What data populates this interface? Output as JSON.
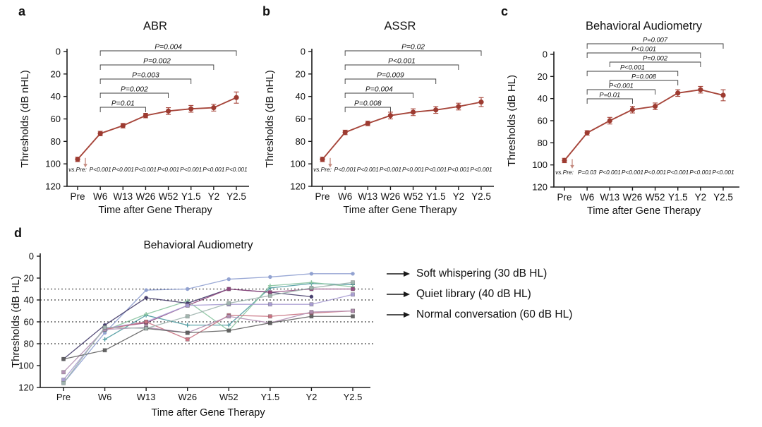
{
  "figure": {
    "accent_red": "#a6453a",
    "marker_red": "#9d3b31",
    "arrow_red": "#c4897e",
    "panel_letters": {
      "a": "a",
      "b": "b",
      "c": "c",
      "d": "d"
    }
  },
  "chart_data": [
    {
      "id": "a",
      "panel_label": "a",
      "type": "line",
      "title": "ABR",
      "xlabel": "Time after Gene Therapy",
      "ylabel": "Thresholds (dB nHL)",
      "categories": [
        "Pre",
        "W6",
        "W13",
        "W26",
        "W52",
        "Y1.5",
        "Y2",
        "Y2.5"
      ],
      "yticks": [
        0,
        20,
        40,
        60,
        80,
        100,
        120
      ],
      "ylim": [
        0,
        120
      ],
      "y_inverted": true,
      "series": [
        {
          "name": "mean-threshold",
          "color": "#a6453a",
          "values": [
            96,
            73,
            66,
            57,
            53,
            51,
            50,
            41
          ],
          "errors": [
            2,
            2,
            2,
            2,
            3,
            3,
            3,
            5
          ]
        }
      ],
      "annotations": {
        "pre_arrow": "down-arrow at Pre",
        "vs_pre_label": "vs.Pre:",
        "vs_pre_values": [
          "P<0.001",
          "P<0.001",
          "P<0.001",
          "P<0.001",
          "P<0.001",
          "P<0.001",
          "P<0.001"
        ],
        "brackets": [
          {
            "from": "W6",
            "to": "W26",
            "label": "P=0.01"
          },
          {
            "from": "W6",
            "to": "W52",
            "label": "P=0.002"
          },
          {
            "from": "W6",
            "to": "Y1.5",
            "label": "P=0.003"
          },
          {
            "from": "W6",
            "to": "Y2",
            "label": "P=0.002"
          },
          {
            "from": "W6",
            "to": "Y2.5",
            "label": "P=0.004"
          }
        ]
      }
    },
    {
      "id": "b",
      "panel_label": "b",
      "type": "line",
      "title": "ASSR",
      "xlabel": "Time after Gene Therapy",
      "ylabel": "Thresholds (dB nHL)",
      "categories": [
        "Pre",
        "W6",
        "W13",
        "W26",
        "W52",
        "Y1.5",
        "Y2",
        "Y2.5"
      ],
      "yticks": [
        0,
        20,
        40,
        60,
        80,
        100,
        120
      ],
      "ylim": [
        0,
        120
      ],
      "y_inverted": true,
      "series": [
        {
          "name": "mean-threshold",
          "color": "#a6453a",
          "values": [
            96,
            72,
            64,
            57,
            54,
            52,
            49,
            45
          ],
          "errors": [
            2,
            2,
            2,
            3,
            3,
            3,
            3,
            4
          ]
        }
      ],
      "annotations": {
        "pre_arrow": "down-arrow at Pre",
        "vs_pre_label": "vs.Pre:",
        "vs_pre_values": [
          "P<0.001",
          "P<0.001",
          "P<0.001",
          "P<0.001",
          "P<0.001",
          "P<0.001",
          "P<0.001"
        ],
        "brackets": [
          {
            "from": "W6",
            "to": "W26",
            "label": "P=0.008"
          },
          {
            "from": "W6",
            "to": "W52",
            "label": "P=0.004"
          },
          {
            "from": "W6",
            "to": "Y1.5",
            "label": "P=0.009"
          },
          {
            "from": "W6",
            "to": "Y2",
            "label": "P<0.001"
          },
          {
            "from": "W6",
            "to": "Y2.5",
            "label": "P=0.02"
          }
        ]
      }
    },
    {
      "id": "c",
      "panel_label": "c",
      "type": "line",
      "title": "Behavioral Audiometry",
      "xlabel": "Time after Gene Therapy",
      "ylabel": "Thresholds (dB HL)",
      "categories": [
        "Pre",
        "W6",
        "W13",
        "W26",
        "W52",
        "Y1.5",
        "Y2",
        "Y2.5"
      ],
      "yticks": [
        0,
        20,
        40,
        60,
        80,
        100,
        120
      ],
      "ylim": [
        0,
        120
      ],
      "y_inverted": true,
      "series": [
        {
          "name": "mean-threshold",
          "color": "#a6453a",
          "values": [
            96,
            71,
            60,
            50,
            47,
            35,
            32,
            37
          ],
          "errors": [
            2,
            2,
            3,
            3,
            3,
            3,
            3,
            5
          ]
        }
      ],
      "annotations": {
        "pre_arrow": "down-arrow at Pre",
        "vs_pre_label": "vs.Pre:",
        "vs_pre_values": [
          "P=0.03",
          "P<0.001",
          "P<0.001",
          "P<0.001",
          "P<0.001",
          "P<0.001",
          "P<0.001"
        ],
        "brackets": [
          {
            "from": "W6",
            "to": "W26",
            "label": "P=0.01"
          },
          {
            "from": "W6",
            "to": "W52",
            "label": "P<0.001"
          },
          {
            "from": "W13",
            "to": "Y1.5",
            "label": "P=0.008"
          },
          {
            "from": "W6",
            "to": "Y1.5",
            "label": "P<0.001"
          },
          {
            "from": "W13",
            "to": "Y2",
            "label": "P=0.002"
          },
          {
            "from": "W6",
            "to": "Y2",
            "label": "P<0.001"
          },
          {
            "from": "W6",
            "to": "Y2.5",
            "label": "P=0.007"
          }
        ]
      }
    },
    {
      "id": "d",
      "panel_label": "d",
      "type": "line",
      "title": "Behavioral Audiometry",
      "xlabel": "Time after Gene Therapy",
      "ylabel": "Thresholds (dB HL)",
      "categories": [
        "Pre",
        "W6",
        "W13",
        "W26",
        "W52",
        "Y1.5",
        "Y2",
        "Y2.5"
      ],
      "yticks": [
        0,
        20,
        40,
        60,
        80,
        100,
        120
      ],
      "ylim": [
        0,
        120
      ],
      "y_inverted": true,
      "reference_lines": [
        30,
        40,
        60,
        80
      ],
      "series": [
        {
          "name": "patient-1",
          "color": "#8e9fd0",
          "marker": "circle",
          "values": [
            116,
            70,
            31,
            30,
            21,
            19,
            16,
            16
          ]
        },
        {
          "name": "patient-2",
          "color": "#4d9aa0",
          "marker": "plus",
          "values": [
            null,
            76,
            54,
            63,
            63,
            29,
            25,
            26
          ]
        },
        {
          "name": "patient-3",
          "color": "#8ac4a0",
          "marker": "plus",
          "values": [
            null,
            68,
            53,
            41,
            68,
            27,
            24,
            28
          ]
        },
        {
          "name": "patient-4",
          "color": "#423a69",
          "marker": "circle",
          "values": [
            94,
            63,
            38,
            43,
            30,
            33,
            37,
            null
          ]
        },
        {
          "name": "patient-5",
          "color": "#91497e",
          "marker": "square",
          "values": [
            null,
            66,
            61,
            45,
            30,
            33,
            30,
            30
          ]
        },
        {
          "name": "patient-6",
          "color": "#a79bd1",
          "marker": "square",
          "values": [
            113,
            66,
            60,
            45,
            44,
            44,
            44,
            35
          ]
        },
        {
          "name": "patient-7",
          "color": "#c8707f",
          "marker": "square",
          "values": [
            null,
            67,
            60,
            76,
            54,
            55,
            52,
            50
          ]
        },
        {
          "name": "patient-8",
          "color": "#b18fb2",
          "marker": "square",
          "values": [
            106,
            67,
            65,
            70,
            55,
            61,
            51,
            50
          ]
        },
        {
          "name": "patient-9",
          "color": "#606060",
          "marker": "square",
          "values": [
            94,
            86,
            66,
            70,
            68,
            61,
            55,
            55
          ]
        },
        {
          "name": "patient-10",
          "color": "#9fb4ae",
          "marker": "square",
          "values": [
            116,
            65,
            66,
            55,
            43,
            36,
            29,
            24
          ]
        }
      ],
      "legend": [
        {
          "label": "Soft whispering (30 dB HL)"
        },
        {
          "label": "Quiet library (40 dB HL)"
        },
        {
          "label": "Normal conversation (60 dB HL)"
        }
      ]
    }
  ]
}
